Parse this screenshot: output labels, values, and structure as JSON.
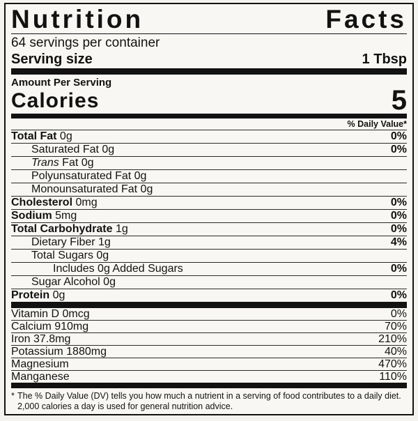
{
  "label": {
    "title": "Nutrition Facts",
    "servings_per_container": "64 servings per container",
    "serving_size_label": "Serving size",
    "serving_size_value": "1 Tbsp",
    "amount_per_serving": "Amount Per Serving",
    "calories_label": "Calories",
    "calories_value": "5",
    "daily_value_header": "% Daily Value*",
    "nutrient_rows": [
      {
        "parts": [
          {
            "text": "Total Fat",
            "bold": true
          },
          {
            "text": " 0g"
          }
        ],
        "dv": "0%",
        "indent": 0
      },
      {
        "parts": [
          {
            "text": "Saturated Fat 0g"
          }
        ],
        "dv": "0%",
        "indent": 1
      },
      {
        "parts": [
          {
            "text": "Trans",
            "italic": true
          },
          {
            "text": " Fat 0g"
          }
        ],
        "dv": "",
        "indent": 1
      },
      {
        "parts": [
          {
            "text": "Polyunsaturated Fat 0g"
          }
        ],
        "dv": "",
        "indent": 1
      },
      {
        "parts": [
          {
            "text": "Monounsaturated Fat 0g"
          }
        ],
        "dv": "",
        "indent": 1
      },
      {
        "parts": [
          {
            "text": "Cholesterol",
            "bold": true
          },
          {
            "text": " 0mg"
          }
        ],
        "dv": "0%",
        "indent": 0
      },
      {
        "parts": [
          {
            "text": "Sodium",
            "bold": true
          },
          {
            "text": " 5mg"
          }
        ],
        "dv": "0%",
        "indent": 0
      },
      {
        "parts": [
          {
            "text": "Total Carbohydrate",
            "bold": true
          },
          {
            "text": " 1g"
          }
        ],
        "dv": "0%",
        "indent": 0
      },
      {
        "parts": [
          {
            "text": "Dietary Fiber 1g"
          }
        ],
        "dv": "4%",
        "indent": 1
      },
      {
        "parts": [
          {
            "text": "Total Sugars 0g"
          }
        ],
        "dv": "",
        "indent": 1
      },
      {
        "parts": [
          {
            "text": "Includes 0g Added Sugars"
          }
        ],
        "dv": "0%",
        "indent": 2
      },
      {
        "parts": [
          {
            "text": "Sugar Alcohol 0g"
          }
        ],
        "dv": "",
        "indent": 1
      },
      {
        "parts": [
          {
            "text": "Protein",
            "bold": true
          },
          {
            "text": " 0g"
          }
        ],
        "dv": "0%",
        "indent": 0
      }
    ],
    "micronutrient_rows": [
      {
        "parts": [
          {
            "text": "Vitamin D 0mcg"
          }
        ],
        "dv": "0%",
        "indent": 0
      },
      {
        "parts": [
          {
            "text": "Calcium 910mg"
          }
        ],
        "dv": "70%",
        "indent": 0
      },
      {
        "parts": [
          {
            "text": "Iron 37.8mg"
          }
        ],
        "dv": "210%",
        "indent": 0
      },
      {
        "parts": [
          {
            "text": "Potassium 1880mg"
          }
        ],
        "dv": "40%",
        "indent": 0
      },
      {
        "parts": [
          {
            "text": "Magnesium"
          }
        ],
        "dv": "470%",
        "indent": 0
      },
      {
        "parts": [
          {
            "text": "Manganese"
          }
        ],
        "dv": "110%",
        "indent": 0
      }
    ],
    "footnote_marker": "*",
    "footnote": "The % Daily Value (DV) tells you how much a nutrient in a serving of food contributes to a daily diet. 2,000 calories a day is used for general nutrition advice."
  },
  "colors": {
    "text": "#121212",
    "background": "#f8f7f3",
    "border": "#121212"
  }
}
